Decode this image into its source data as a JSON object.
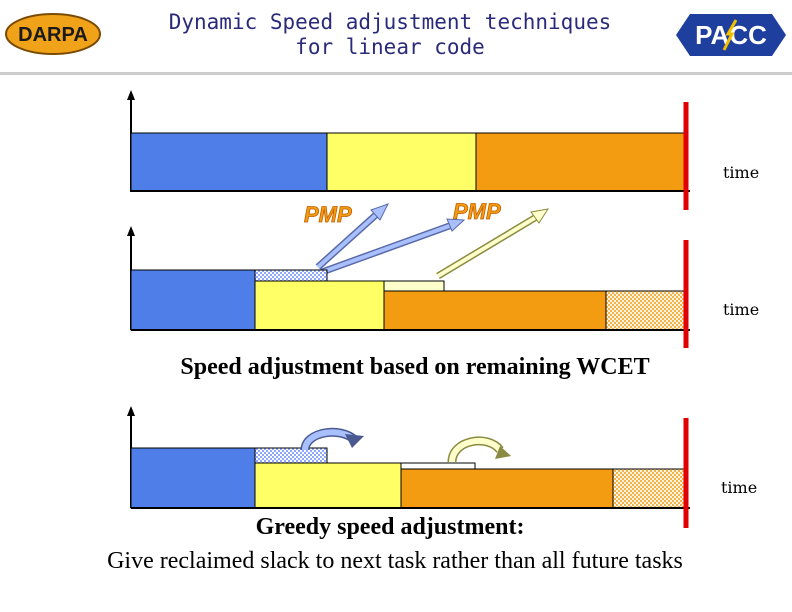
{
  "header": {
    "title_line1": "Dynamic Speed adjustment techniques",
    "title_line2": "for linear code",
    "left_logo_text": "DARPA",
    "right_logo_text": "PACC"
  },
  "diagram": {
    "time_label": "time",
    "pmp_label": "PMP",
    "caption_remaining_wcet": "Speed adjustment based on remaining WCET",
    "caption_greedy_title": "Greedy speed adjustment:",
    "caption_greedy_body": "Give reclaimed slack to next task rather than all future tasks"
  },
  "colors": {
    "task1": "#4f7ee8",
    "task2": "#ffff66",
    "task3": "#f39c12",
    "deadline": "#e00000",
    "slack_checker": "#9fb6ff",
    "title_text": "#2a2a7a"
  }
}
